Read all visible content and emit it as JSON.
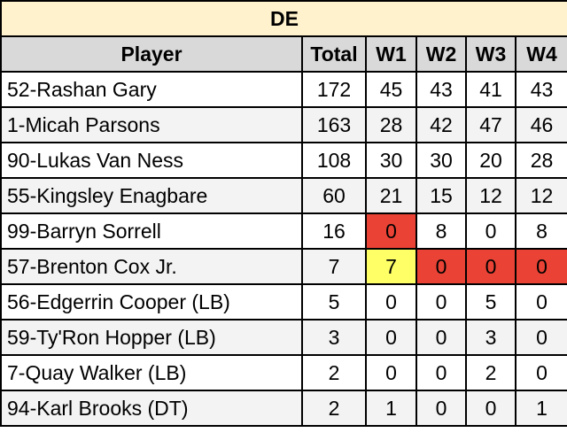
{
  "title": "DE",
  "headers": [
    "Player",
    "Total",
    "W1",
    "W2",
    "W3",
    "W4"
  ],
  "rows": [
    {
      "player": "52-Rashan Gary",
      "total": "172",
      "w": [
        "45",
        "43",
        "41",
        "43"
      ]
    },
    {
      "player": "1-Micah Parsons",
      "total": "163",
      "w": [
        "28",
        "42",
        "47",
        "46"
      ]
    },
    {
      "player": "90-Lukas Van Ness",
      "total": "108",
      "w": [
        "30",
        "30",
        "20",
        "28"
      ]
    },
    {
      "player": "55-Kingsley Enagbare",
      "total": "60",
      "w": [
        "21",
        "15",
        "12",
        "12"
      ]
    },
    {
      "player": "99-Barryn Sorrell",
      "total": "16",
      "w": [
        "0",
        "8",
        "0",
        "8"
      ]
    },
    {
      "player": "57-Brenton Cox Jr.",
      "total": "7",
      "w": [
        "7",
        "0",
        "0",
        "0"
      ]
    },
    {
      "player": "56-Edgerrin Cooper (LB)",
      "total": "5",
      "w": [
        "0",
        "0",
        "5",
        "0"
      ]
    },
    {
      "player": "59-Ty'Ron Hopper (LB)",
      "total": "3",
      "w": [
        "0",
        "0",
        "3",
        "0"
      ]
    },
    {
      "player": "7-Quay Walker (LB)",
      "total": "2",
      "w": [
        "0",
        "0",
        "2",
        "0"
      ]
    },
    {
      "player": "94-Karl Brooks (DT)",
      "total": "2",
      "w": [
        "1",
        "0",
        "0",
        "1"
      ]
    }
  ],
  "highlight_colors": {
    "red": "#ea4335",
    "yellow": "#ffff66",
    "title_bg": "#fff2cc",
    "header_bg": "#d9d9d9"
  }
}
